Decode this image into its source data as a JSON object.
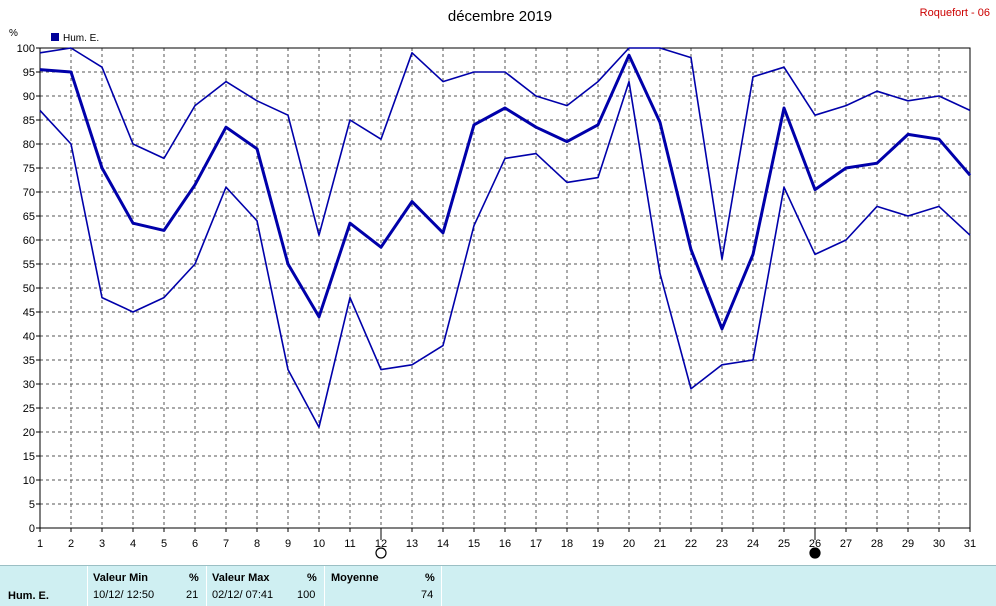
{
  "chart_data": {
    "type": "line",
    "title": "décembre 2019",
    "station": "Roquefort - 06",
    "ylabel": "%",
    "legend": "Hum. E.",
    "legend_color": "#000099",
    "line_color": "#0000aa",
    "ylim": [
      0,
      100
    ],
    "ytick_step": 5,
    "x": [
      1,
      2,
      3,
      4,
      5,
      6,
      7,
      8,
      9,
      10,
      11,
      12,
      13,
      14,
      15,
      16,
      17,
      18,
      19,
      20,
      21,
      22,
      23,
      24,
      25,
      26,
      27,
      28,
      29,
      30,
      31
    ],
    "xlim": [
      1,
      31
    ],
    "grid": true,
    "series": [
      {
        "values": [
          99,
          100,
          96,
          80,
          77,
          88,
          93,
          89,
          86,
          61,
          85,
          81,
          99,
          93,
          95,
          95,
          90,
          88,
          93,
          100,
          100,
          98,
          56,
          94,
          96,
          86,
          88,
          91,
          89,
          90,
          87
        ]
      },
      {
        "values": [
          95.5,
          95,
          75,
          63.5,
          62,
          71.5,
          83.5,
          79,
          55,
          44,
          63.5,
          58.5,
          68,
          61.5,
          84,
          87.5,
          83.5,
          80.5,
          84,
          98.5,
          84.5,
          58,
          41.5,
          57,
          87.5,
          70.5,
          75,
          76,
          82,
          81,
          73.5
        ]
      },
      {
        "values": [
          87,
          80,
          48,
          45,
          48,
          55,
          71,
          64,
          33,
          21,
          48,
          33,
          34,
          38,
          63,
          77,
          78,
          72,
          73,
          93,
          53,
          29,
          34,
          35,
          71,
          57,
          60,
          67,
          65,
          67,
          61
        ]
      }
    ],
    "moon_markers": [
      {
        "day": 12,
        "phase": "full-moon"
      },
      {
        "day": 26,
        "phase": "new-moon"
      }
    ]
  },
  "stats": {
    "series_label": "Hum. E.",
    "min_header": "Valeur Min",
    "max_header": "Valeur Max",
    "avg_header": "Moyenne",
    "unit": "%",
    "min_time": "10/12/  12:50",
    "min_value": "21",
    "max_time": "02/12/  07:41",
    "max_value": "100",
    "avg_value": "74"
  }
}
